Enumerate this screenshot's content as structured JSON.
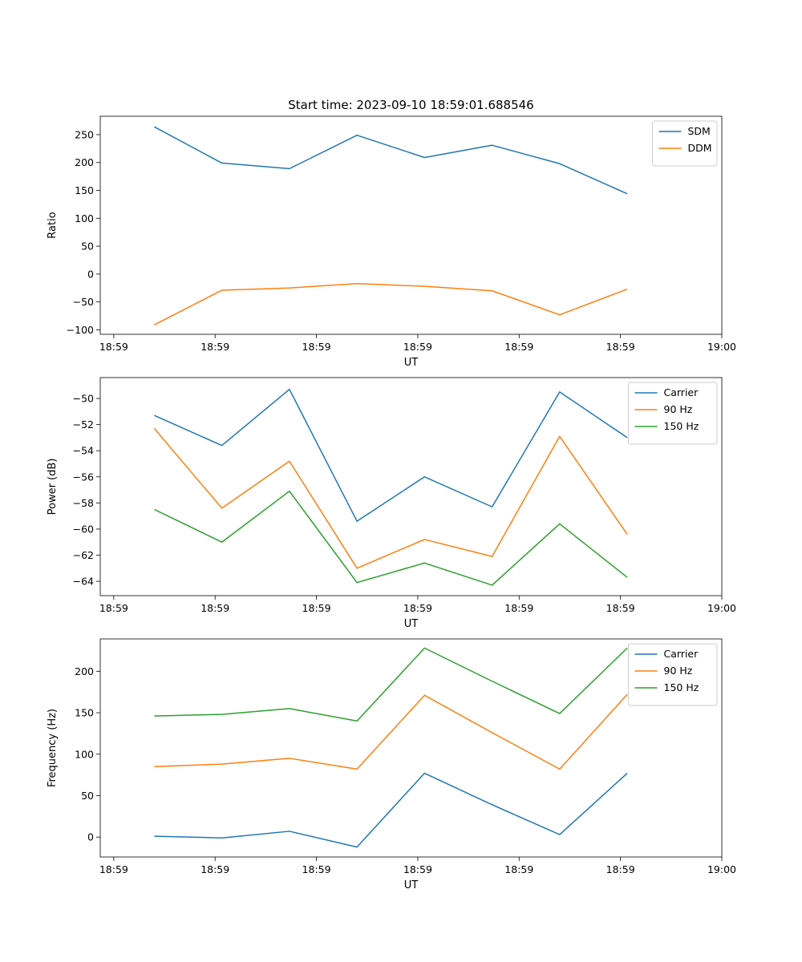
{
  "figure_title": "Start time: 2023-09-10 18:59:01.688546",
  "chart_data": [
    {
      "type": "line",
      "title": "Start time: 2023-09-10 18:59:01.688546",
      "xlabel": "UT",
      "ylabel": "Ratio",
      "x": [
        1,
        2,
        3,
        4,
        5,
        6,
        7,
        8
      ],
      "xlim": [
        0.2,
        9.4
      ],
      "x_ticks": [
        0.4,
        1.9,
        3.4,
        4.9,
        6.4,
        7.9,
        9.4
      ],
      "x_tick_labels": [
        "18:59",
        "18:59",
        "18:59",
        "18:59",
        "18:59",
        "18:59",
        "19:00"
      ],
      "ylim": [
        -108,
        283
      ],
      "y_ticks": [
        -100,
        -50,
        0,
        50,
        100,
        150,
        200,
        250
      ],
      "y_tick_labels": [
        "−100",
        "−50",
        "0",
        "50",
        "100",
        "150",
        "200",
        "250"
      ],
      "legend_position": "top-right",
      "series": [
        {
          "name": "SDM",
          "color": "#1f77b4",
          "values": [
            264,
            199,
            189,
            249,
            209,
            231,
            198,
            144
          ]
        },
        {
          "name": "DDM",
          "color": "#ff7f0e",
          "values": [
            -91,
            -29,
            -25,
            -17,
            -22,
            -30,
            -73,
            -27
          ]
        }
      ]
    },
    {
      "type": "line",
      "title": "",
      "xlabel": "UT",
      "ylabel": "Power (dB)",
      "x": [
        1,
        2,
        3,
        4,
        5,
        6,
        7,
        8
      ],
      "xlim": [
        0.2,
        9.4
      ],
      "x_ticks": [
        0.4,
        1.9,
        3.4,
        4.9,
        6.4,
        7.9,
        9.4
      ],
      "x_tick_labels": [
        "18:59",
        "18:59",
        "18:59",
        "18:59",
        "18:59",
        "18:59",
        "19:00"
      ],
      "ylim": [
        -65.1,
        -48.4
      ],
      "y_ticks": [
        -64,
        -62,
        -60,
        -58,
        -56,
        -54,
        -52,
        -50
      ],
      "y_tick_labels": [
        "−64",
        "−62",
        "−60",
        "−58",
        "−56",
        "−54",
        "−52",
        "−50"
      ],
      "legend_position": "top-right",
      "series": [
        {
          "name": "Carrier",
          "color": "#1f77b4",
          "values": [
            -51.3,
            -53.6,
            -49.3,
            -59.4,
            -56.0,
            -58.3,
            -49.5,
            -53.0
          ]
        },
        {
          "name": "90 Hz",
          "color": "#ff7f0e",
          "values": [
            -52.3,
            -58.4,
            -54.8,
            -63.0,
            -60.8,
            -62.1,
            -52.9,
            -60.4
          ]
        },
        {
          "name": "150 Hz",
          "color": "#2ca02c",
          "values": [
            -58.5,
            -61.0,
            -57.1,
            -64.1,
            -62.6,
            -64.3,
            -59.6,
            -63.7
          ]
        }
      ]
    },
    {
      "type": "line",
      "title": "",
      "xlabel": "UT",
      "ylabel": "Frequency (Hz)",
      "x": [
        1,
        2,
        3,
        4,
        5,
        6,
        7,
        8
      ],
      "xlim": [
        0.2,
        9.4
      ],
      "x_ticks": [
        0.4,
        1.9,
        3.4,
        4.9,
        6.4,
        7.9,
        9.4
      ],
      "x_tick_labels": [
        "18:59",
        "18:59",
        "18:59",
        "18:59",
        "18:59",
        "18:59",
        "19:00"
      ],
      "ylim": [
        -24,
        239
      ],
      "y_ticks": [
        0,
        50,
        100,
        150,
        200
      ],
      "y_tick_labels": [
        "0",
        "50",
        "100",
        "150",
        "200"
      ],
      "legend_position": "top-right",
      "series": [
        {
          "name": "Carrier",
          "color": "#1f77b4",
          "values": [
            1,
            -1,
            7,
            -12,
            77,
            39,
            3,
            77
          ]
        },
        {
          "name": "90 Hz",
          "color": "#ff7f0e",
          "values": [
            85,
            88,
            95,
            82,
            171,
            126,
            82,
            172
          ]
        },
        {
          "name": "150 Hz",
          "color": "#2ca02c",
          "values": [
            146,
            148,
            155,
            140,
            228,
            188,
            149,
            228
          ]
        }
      ]
    }
  ]
}
